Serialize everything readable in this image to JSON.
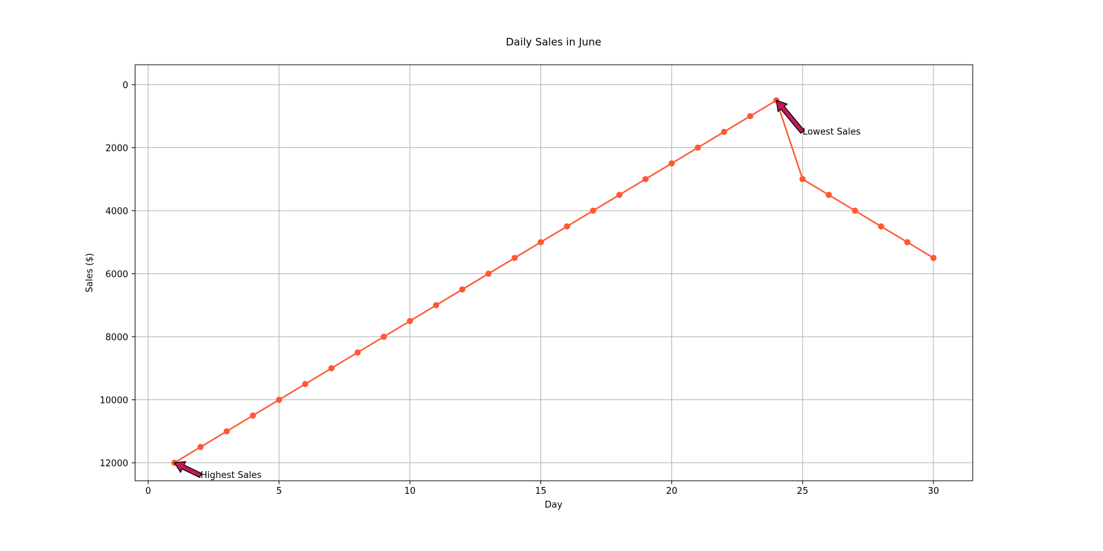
{
  "chart_data": {
    "type": "line",
    "title": "Daily Sales in June",
    "xlabel": "Day",
    "ylabel": "Sales ($)",
    "xlim": [
      -0.5,
      31.5
    ],
    "ylim": [
      12570,
      -630
    ],
    "y_inverted": true,
    "grid": true,
    "xticks": [
      0,
      5,
      10,
      15,
      20,
      25,
      30
    ],
    "yticks": [
      0,
      2000,
      4000,
      6000,
      8000,
      10000,
      12000
    ],
    "series": [
      {
        "color": "#ff5733",
        "marker": "circle",
        "x": [
          1,
          2,
          3,
          4,
          5,
          6,
          7,
          8,
          9,
          10,
          11,
          12,
          13,
          14,
          15,
          16,
          17,
          18,
          19,
          20,
          21,
          22,
          23,
          24,
          25,
          26,
          27,
          28,
          29,
          30
        ],
        "y": [
          12000,
          11500,
          11000,
          10500,
          10000,
          9500,
          9000,
          8500,
          8000,
          7500,
          7000,
          6500,
          6000,
          5500,
          5000,
          4500,
          4000,
          3500,
          3000,
          2500,
          2000,
          1500,
          1000,
          500,
          3000,
          3500,
          4000,
          4500,
          5000,
          5500
        ]
      }
    ],
    "annotations": [
      {
        "text": "Highest Sales",
        "x": 1,
        "y": 12000,
        "text_x": 2,
        "text_y": 12400,
        "arrow_color": "#c2185b"
      },
      {
        "text": "Lowest Sales",
        "x": 24,
        "y": 500,
        "text_x": 25,
        "text_y": 1500,
        "arrow_color": "#c2185b"
      }
    ]
  }
}
